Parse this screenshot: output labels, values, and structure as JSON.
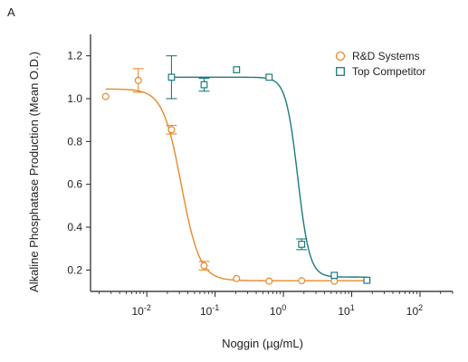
{
  "panel_label": "A",
  "chart_data": {
    "type": "scatter",
    "title": "",
    "xlabel": "Noggin (µg/mL)",
    "ylabel": "Alkaline Phosphatase Production (Mean O.D.)",
    "xscale": "log",
    "xlim": [
      0.0015,
      300
    ],
    "ylim": [
      0.1,
      1.3
    ],
    "x_tick_values": [
      0.01,
      0.1,
      1,
      10,
      100
    ],
    "x_ticks": [
      {
        "base": "10",
        "exp": "-2"
      },
      {
        "base": "10",
        "exp": "-1"
      },
      {
        "base": "10",
        "exp": "0"
      },
      {
        "base": "10",
        "exp": "1"
      },
      {
        "base": "10",
        "exp": "2"
      }
    ],
    "y_ticks": [
      0.2,
      0.4,
      0.6,
      0.8,
      1.0,
      1.2
    ],
    "y_tick_labels": [
      "0.2",
      "0.4",
      "0.6",
      "0.8",
      "1.0",
      "1.2"
    ],
    "legend_position": "top-right",
    "grid": false,
    "series": [
      {
        "name": "R&D Systems",
        "marker": "circle",
        "color": "#E8892B",
        "points": [
          {
            "x": 0.0025,
            "y": 1.01,
            "err": 0
          },
          {
            "x": 0.0075,
            "y": 1.085,
            "err": 0.055
          },
          {
            "x": 0.023,
            "y": 0.855,
            "err": 0.02
          },
          {
            "x": 0.069,
            "y": 0.22,
            "err": 0.02
          },
          {
            "x": 0.206,
            "y": 0.16,
            "err": 0
          },
          {
            "x": 0.617,
            "y": 0.148,
            "err": 0
          },
          {
            "x": 1.85,
            "y": 0.15,
            "err": 0
          },
          {
            "x": 5.56,
            "y": 0.148,
            "err": 0
          },
          {
            "x": 16.7,
            "y": 0.152,
            "err": 0
          }
        ],
        "fit": {
          "top": 1.045,
          "bottom": 0.15,
          "ec50": 0.032,
          "hill": 3.2
        }
      },
      {
        "name": "Top Competitor",
        "marker": "square",
        "color": "#1C7B7F",
        "points": [
          {
            "x": 0.023,
            "y": 1.1,
            "err": 0.1
          },
          {
            "x": 0.069,
            "y": 1.065,
            "err": 0.03
          },
          {
            "x": 0.206,
            "y": 1.135,
            "err": 0
          },
          {
            "x": 0.617,
            "y": 1.1,
            "err": 0
          },
          {
            "x": 1.85,
            "y": 0.32,
            "err": 0.025
          },
          {
            "x": 5.56,
            "y": 0.175,
            "err": 0
          },
          {
            "x": 16.7,
            "y": 0.152,
            "err": 0
          }
        ],
        "fit": {
          "top": 1.1,
          "bottom": 0.167,
          "ec50": 1.62,
          "hill": 5.0
        }
      }
    ]
  }
}
